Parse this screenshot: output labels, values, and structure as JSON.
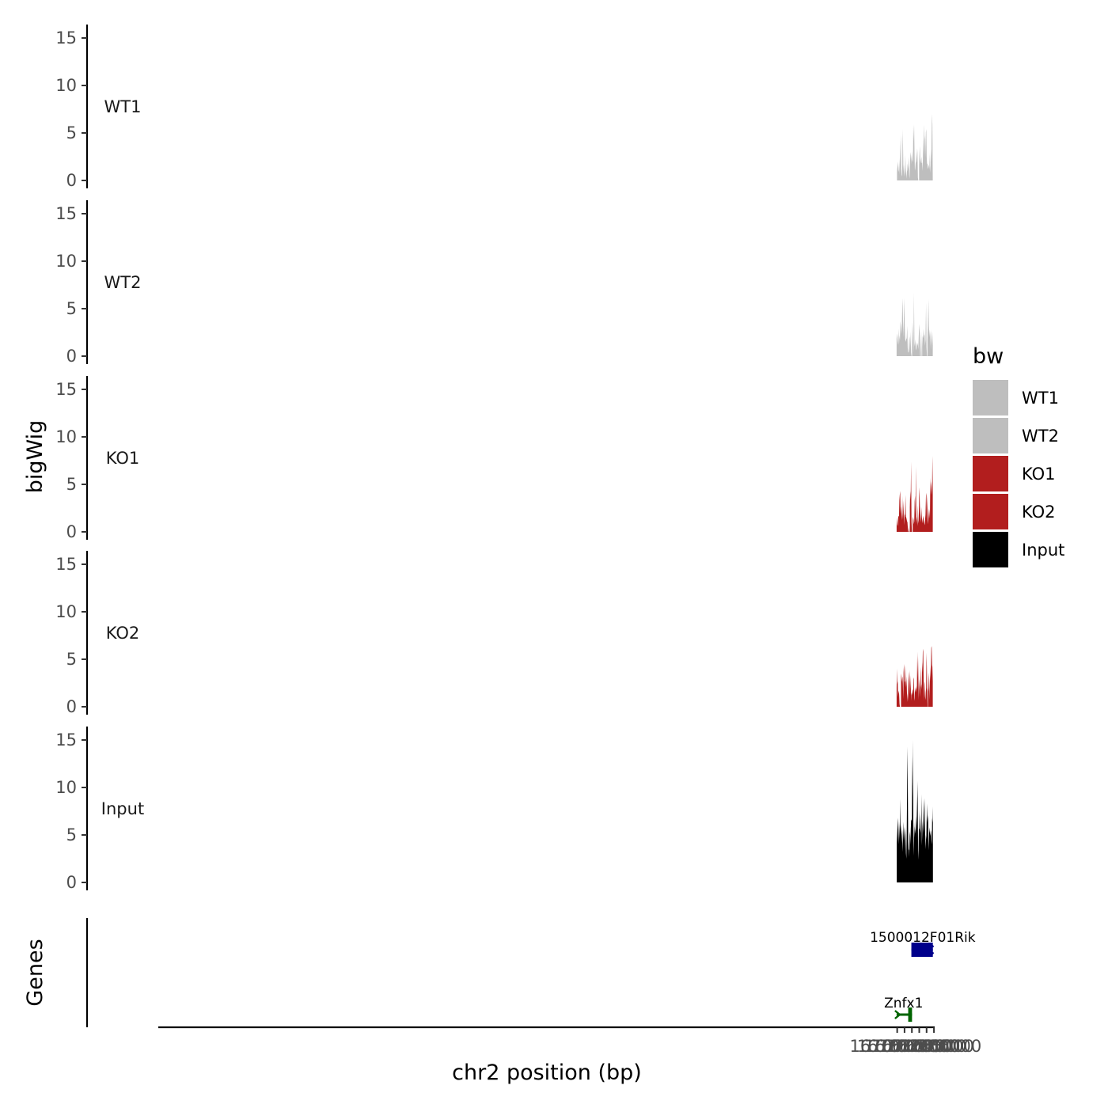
{
  "chart_data": {
    "type": "area",
    "title": "",
    "xlabel": "chr2 position (bp)",
    "ylabel": "bigWig",
    "genes_label": "Genes",
    "xlim": [
      166960500,
      167066100
    ],
    "x_ticks": [
      {
        "value": 167061000,
        "label": "167061000"
      },
      {
        "value": 167062000,
        "label": "167062000"
      },
      {
        "value": 167063000,
        "label": "167063000"
      },
      {
        "value": 167064000,
        "label": "167064000"
      },
      {
        "value": 167065000,
        "label": "167065000"
      },
      {
        "value": 167066000,
        "label": "167066000"
      }
    ],
    "ylim": [
      0,
      16
    ],
    "y_ticks": [
      {
        "value": 0,
        "label": "0"
      },
      {
        "value": 5,
        "label": "5"
      },
      {
        "value": 10,
        "label": "10"
      },
      {
        "value": 15,
        "label": "15"
      }
    ],
    "legend": {
      "title": "bw",
      "position": "right",
      "entries": [
        {
          "name": "WT1",
          "color": "#bebebe"
        },
        {
          "name": "WT2",
          "color": "#bebebe"
        },
        {
          "name": "KO1",
          "color": "#b21e1e"
        },
        {
          "name": "KO2",
          "color": "#b21e1e"
        },
        {
          "name": "Input",
          "color": "#000000"
        }
      ]
    },
    "series": [
      {
        "name": "WT1",
        "color": "#bebebe",
        "x_start": 167060920,
        "x_end": 167065840,
        "values": [
          0,
          0.9,
          1.3,
          1.6,
          2.0,
          0.9,
          1.1,
          2.3,
          0.6,
          2.3,
          3.5,
          4.8,
          1.2,
          0.6,
          0.4,
          1.6,
          5.4,
          3.2,
          0.9,
          1.7,
          0.9,
          0.4,
          1.0,
          2.7,
          1.4,
          0.8,
          0.2,
          0.9,
          1.1,
          1.8,
          1.2,
          1.8,
          2.5,
          0.6,
          0.2,
          1.2,
          2.6,
          3.0,
          1.7,
          2.7,
          2.0,
          3.1,
          1.9,
          2.2,
          5.9,
          4.1,
          5.9,
          3.0,
          1.0,
          1.3,
          1.8,
          2.0,
          3.1,
          1.9,
          3.4,
          2.9,
          0.3,
          0,
          0,
          1.5,
          2.6,
          3.6,
          2.4,
          1.8,
          2.1,
          2.5,
          1.8,
          1.9,
          1.0,
          2.2,
          4.5,
          2.7,
          5.9,
          4.7,
          4.3,
          2.4,
          3.6,
          5.1,
          5.4,
          2.5,
          1.7,
          1.8,
          1.4,
          1.2,
          1.5,
          1.7,
          1.1,
          2.9,
          0.8,
          1.6,
          3.3,
          1.9,
          4.4,
          7.0,
          5.9,
          0
        ]
      },
      {
        "name": "WT2",
        "color": "#bebebe",
        "x_start": 167060920,
        "x_end": 167065840,
        "values": [
          1.9,
          2.4,
          1.6,
          1.2,
          2.9,
          1.2,
          2.2,
          1.7,
          3.7,
          3.1,
          2.3,
          3.4,
          6.1,
          4.6,
          2.0,
          3.9,
          6.1,
          3.0,
          1.8,
          1.5,
          1.8,
          1.9,
          3.2,
          0.9,
          0.4,
          0.4,
          1.7,
          2.1,
          0.4,
          2.6,
          0.4,
          0,
          1.6,
          3.6,
          1.9,
          0.4,
          6.7,
          1.4,
          1.0,
          1.8,
          0.8,
          0.6,
          1.5,
          1.1,
          1.4,
          0.7,
          2.2,
          3.4,
          2.5,
          0,
          0.3,
          2.7,
          0,
          1.0,
          2.1,
          1.9,
          2.9,
          2.1,
          2.3,
          1.1,
          1.7,
          5.6,
          0.9,
          0,
          1.7,
          3.0,
          6.0,
          3.2,
          2.0,
          2.8,
          2.0,
          0.7,
          2.8,
          1.2,
          2.6,
          1.1
        ]
      },
      {
        "name": "KO1",
        "color": "#b21e1e",
        "x_start": 167060920,
        "x_end": 167065840,
        "values": [
          0.6,
          1.5,
          0.8,
          0.6,
          1.5,
          1.7,
          1.6,
          3.3,
          3.9,
          4.3,
          1.9,
          2.7,
          1.8,
          1.2,
          3.8,
          2.0,
          1.3,
          3.3,
          2.1,
          0.7,
          1.9,
          1.7,
          3.9,
          1.6,
          1.5,
          1.3,
          1.1,
          1.0,
          0.4,
          0,
          0.7,
          0.1,
          0,
          2.6,
          4.3,
          3.4,
          7.4,
          1.1,
          0,
          0,
          1.2,
          1.6,
          1.3,
          0.8,
          1.1,
          3.2,
          3.8,
          1.8,
          6.9,
          0.8,
          1.6,
          1.2,
          0.6,
          2.8,
          1.2,
          0.9,
          3.6,
          4.7,
          2.7,
          2.0,
          1.5,
          1.0,
          2.6,
          1.5,
          0.9,
          1.3,
          1.7,
          1.4,
          1.1,
          0.9,
          0.7,
          1.3,
          1.8,
          3.8,
          4.1,
          1.3,
          3.9,
          2.5,
          0.8,
          1.2,
          2.5,
          1.4,
          2.4,
          1.4,
          5.7,
          3.9,
          5.3,
          4.8,
          3.9,
          8.0,
          5.1
        ]
      },
      {
        "name": "KO2",
        "color": "#b21e1e",
        "x_start": 167060920,
        "x_end": 167065840,
        "values": [
          1.9,
          4.0,
          2.4,
          2.7,
          1.0,
          1.7,
          1.5,
          1.3,
          0.3,
          0,
          0,
          0,
          3.1,
          3.5,
          2.6,
          3.0,
          3.2,
          2.4,
          0.8,
          3.6,
          4.5,
          3.7,
          2.6,
          2.7,
          2.0,
          4.4,
          2.1,
          3.2,
          1.7,
          0.5,
          1.4,
          0.6,
          2.8,
          3.7,
          2.7,
          1.3,
          3.9,
          1.9,
          3.3,
          0.6,
          1.5,
          1.2,
          1.5,
          1.9,
          1.7,
          1.3,
          2.9,
          3.1,
          0.6,
          0.9,
          2.1,
          1.5,
          2.0,
          1.5,
          2.2,
          1.8,
          5.3,
          3.0,
          5.8,
          3.0,
          0.7,
          2.9,
          2.1,
          1.0,
          2.8,
          4.2,
          2.0,
          2.4,
          1.8,
          4.7,
          3.6,
          5.8,
          6.1,
          3.7,
          0.6,
          2.7,
          2.4,
          1.1,
          0.7,
          1.5,
          2.0,
          5.7,
          4.3,
          1.4,
          0,
          2.0,
          1.6,
          2.9,
          3.6,
          0.7,
          2.6,
          4.2,
          2.7,
          4.3,
          6.2,
          6.4,
          4.4,
          4.2,
          2.7
        ]
      },
      {
        "name": "Input",
        "color": "#000000",
        "x_start": 167060940,
        "x_end": 167065860,
        "values": [
          6.4,
          4.2,
          5.5,
          6.3,
          6.8,
          5.1,
          4.0,
          6.4,
          4.4,
          8.8,
          6.2,
          5.0,
          6.1,
          5.4,
          4.1,
          5.6,
          3.2,
          4.4,
          5.5,
          6.4,
          4.4,
          5.8,
          3.3,
          5.9,
          5.0,
          3.1,
          2.5,
          5.1,
          9.3,
          14.3,
          9.8,
          4.3,
          3.4,
          3.5,
          2.7,
          4.9,
          5.4,
          4.0,
          5.6,
          6.6,
          6.5,
          6.8,
          13.3,
          9.0,
          15.0,
          4.4,
          2.8,
          6.4,
          4.7,
          5.9,
          5.1,
          5.6,
          7.0,
          5.5,
          9.3,
          4.7,
          10.7,
          8.8,
          2.4,
          3.4,
          5.6,
          5.7,
          7.6,
          4.1,
          7.3,
          5.2,
          5.6,
          9.3,
          3.9,
          4.9,
          6.5,
          5.1,
          8.8,
          6.6,
          5.3,
          7.5,
          8.9,
          4.4,
          3.5,
          5.0,
          4.5,
          6.3,
          8.3,
          6.3,
          7.1,
          6.5,
          4.4,
          3.4,
          5.8,
          5.4,
          5.2,
          4.9,
          5.5,
          5.3,
          4.4,
          4.0,
          6.8,
          6.3,
          8.0
        ]
      }
    ],
    "genes": [
      {
        "name": "1500012F01Rik",
        "strand": "+",
        "color": "#00008b",
        "start": 167062930,
        "end": 167065850,
        "exons": [
          [
            167062930,
            167065850
          ]
        ]
      },
      {
        "name": "Znfx1",
        "strand": "-",
        "color": "#006400",
        "start": 167060920,
        "end": 167063020,
        "exons": [
          [
            167062500,
            167063020
          ]
        ]
      }
    ]
  }
}
